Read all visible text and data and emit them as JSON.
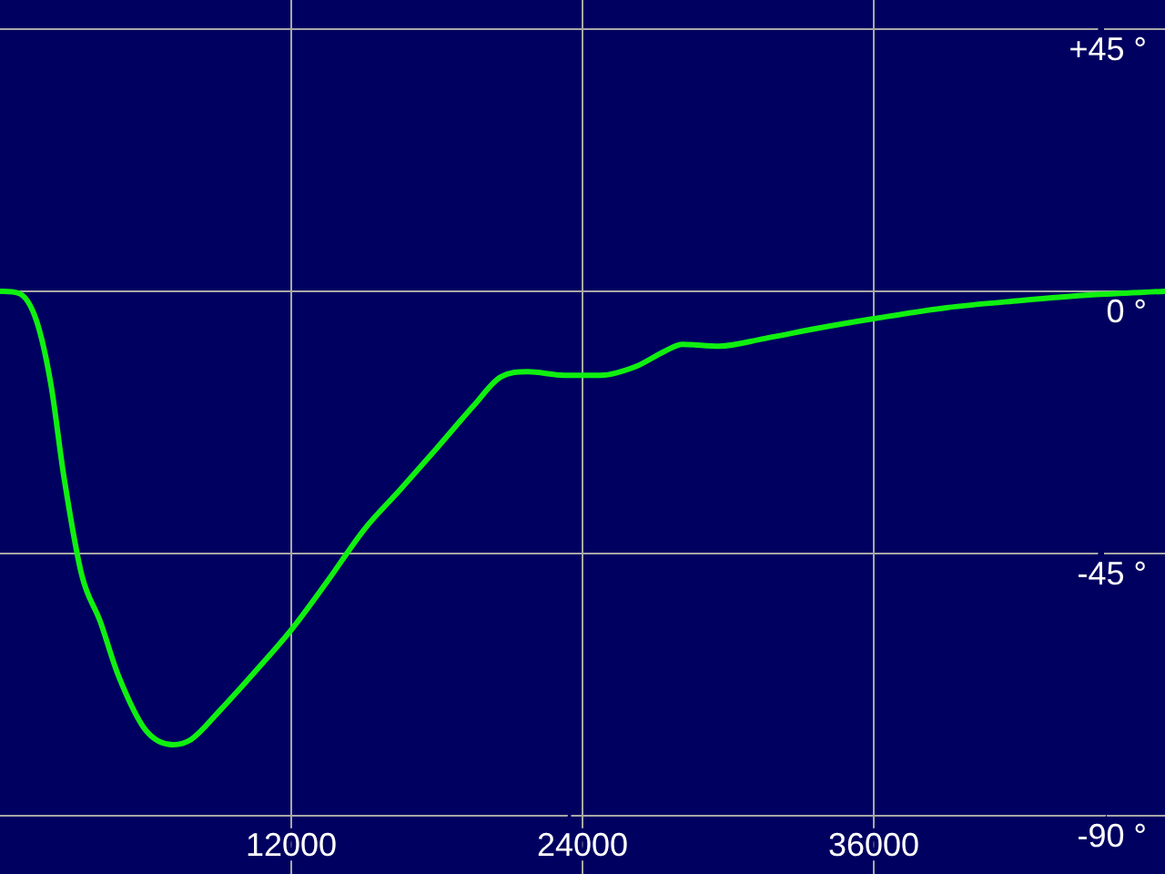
{
  "chart_data": {
    "type": "line",
    "x": [
      0,
      750,
      1500,
      2100,
      2625,
      3375,
      4125,
      4875,
      6000,
      7125,
      7875,
      9000,
      10500,
      12000,
      13500,
      15000,
      16500,
      18000,
      19500,
      20625,
      21750,
      23250,
      24750,
      26250,
      27375,
      28125,
      29625,
      31500,
      33750,
      36000,
      39000,
      42000,
      45000,
      48000
    ],
    "series": [
      {
        "color": "#10f010",
        "values": [
          0,
          -0.3,
          -5,
          -16,
          -31.6,
          -48.8,
          -56.6,
          -65.9,
          -75.3,
          -77.8,
          -76.9,
          -72.2,
          -65.3,
          -58.1,
          -49.7,
          -40.9,
          -34,
          -26.9,
          -19.7,
          -14.7,
          -13.8,
          -14.4,
          -14.4,
          -12.8,
          -10.3,
          -9.1,
          -9.4,
          -8.1,
          -6.3,
          -4.7,
          -2.8,
          -1.6,
          -0.6,
          0
        ]
      }
    ],
    "xlim": [
      0,
      48000
    ],
    "xticks": [
      12000,
      24000,
      36000
    ],
    "ylim": [
      -100,
      50
    ],
    "yticks": [
      {
        "value": 45,
        "label": "+45 °"
      },
      {
        "value": 0,
        "label": "0 °"
      },
      {
        "value": -45,
        "label": "-45 °"
      },
      {
        "value": -90,
        "label": "-90 °"
      }
    ],
    "grid": true,
    "legend": false,
    "marker": "none",
    "line_style": "solid"
  }
}
